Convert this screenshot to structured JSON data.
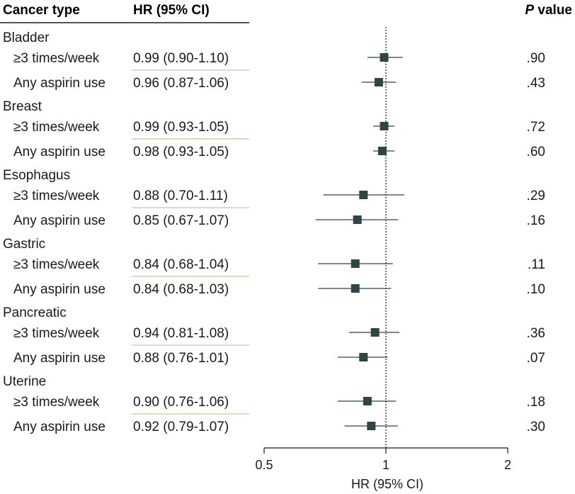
{
  "chart_data": {
    "type": "forest",
    "headers": {
      "cancer_type": "Cancer type",
      "hr": "HR (95% CI)",
      "p_italic": "P",
      "p_rest": " value"
    },
    "groups": [
      {
        "name": "Bladder",
        "rows": [
          {
            "label": "≥3 times/week",
            "hr_text": "0.99 (0.90-1.10)",
            "hr": 0.99,
            "lo": 0.9,
            "hi": 1.1,
            "p": ".90"
          },
          {
            "label": "Any aspirin use",
            "hr_text": "0.96 (0.87-1.06)",
            "hr": 0.96,
            "lo": 0.87,
            "hi": 1.06,
            "p": ".43"
          }
        ]
      },
      {
        "name": "Breast",
        "rows": [
          {
            "label": "≥3 times/week",
            "hr_text": "0.99 (0.93-1.05)",
            "hr": 0.99,
            "lo": 0.93,
            "hi": 1.05,
            "p": ".72"
          },
          {
            "label": "Any aspirin use",
            "hr_text": "0.98 (0.93-1.05)",
            "hr": 0.98,
            "lo": 0.93,
            "hi": 1.05,
            "p": ".60"
          }
        ]
      },
      {
        "name": "Esophagus",
        "rows": [
          {
            "label": "≥3 times/week",
            "hr_text": "0.88 (0.70-1.11)",
            "hr": 0.88,
            "lo": 0.7,
            "hi": 1.11,
            "p": ".29"
          },
          {
            "label": "Any aspirin use",
            "hr_text": "0.85 (0.67-1.07)",
            "hr": 0.85,
            "lo": 0.67,
            "hi": 1.07,
            "p": ".16"
          }
        ]
      },
      {
        "name": "Gastric",
        "rows": [
          {
            "label": "≥3 times/week",
            "hr_text": "0.84 (0.68-1.04)",
            "hr": 0.84,
            "lo": 0.68,
            "hi": 1.04,
            "p": ".11"
          },
          {
            "label": "Any aspirin use",
            "hr_text": "0.84 (0.68-1.03)",
            "hr": 0.84,
            "lo": 0.68,
            "hi": 1.03,
            "p": ".10"
          }
        ]
      },
      {
        "name": "Pancreatic",
        "rows": [
          {
            "label": "≥3 times/week",
            "hr_text": "0.94 (0.81-1.08)",
            "hr": 0.94,
            "lo": 0.81,
            "hi": 1.08,
            "p": ".36"
          },
          {
            "label": "Any aspirin use",
            "hr_text": "0.88 (0.76-1.01)",
            "hr": 0.88,
            "lo": 0.76,
            "hi": 1.01,
            "p": ".07"
          }
        ]
      },
      {
        "name": "Uterine",
        "rows": [
          {
            "label": "≥3 times/week",
            "hr_text": "0.90 (0.76-1.06)",
            "hr": 0.9,
            "lo": 0.76,
            "hi": 1.06,
            "p": ".18"
          },
          {
            "label": "Any aspirin use",
            "hr_text": "0.92 (0.79-1.07)",
            "hr": 0.92,
            "lo": 0.79,
            "hi": 1.07,
            "p": ".30"
          }
        ]
      }
    ],
    "x_axis": {
      "label": "HR (95% CI)",
      "scale": "log",
      "range": [
        0.5,
        2
      ],
      "ticks": [
        {
          "value": 0.5,
          "label": "0.5"
        },
        {
          "value": 1,
          "label": "1"
        },
        {
          "value": 2,
          "label": "2"
        }
      ],
      "reference_line": 1
    },
    "colors": {
      "marker": "#2f4447",
      "ci_line": "#2f4447",
      "divider": "#c9c3a8",
      "text": "#1a1a1a"
    }
  }
}
